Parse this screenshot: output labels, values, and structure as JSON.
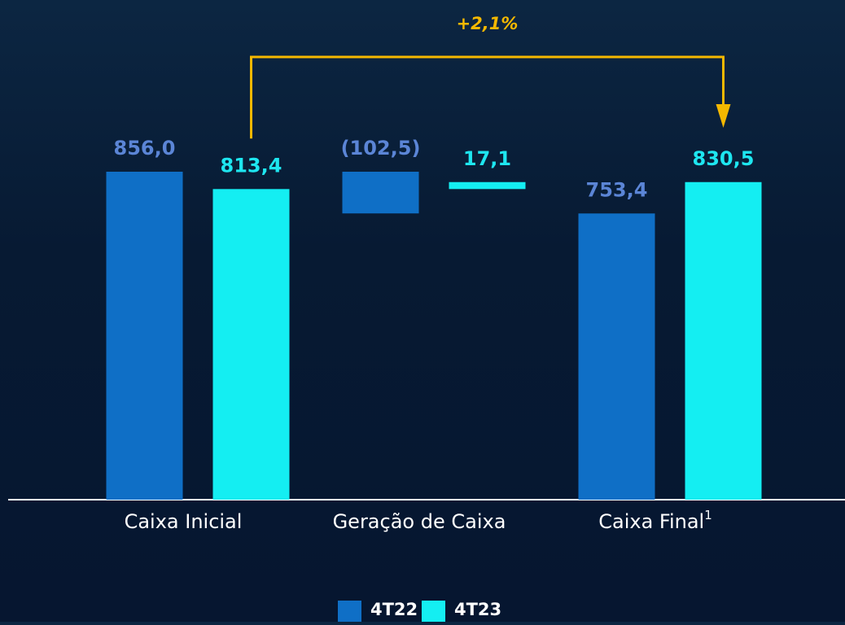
{
  "chart_data": {
    "type": "waterfall",
    "categories": [
      "Caixa Inicial",
      "Geração de Caixa",
      "Caixa Final"
    ],
    "category_superscripts": [
      null,
      null,
      "1"
    ],
    "is_total": [
      true,
      false,
      true
    ],
    "series": [
      {
        "name": "4T22",
        "color": "#0f6fc6",
        "label_color": "#5b85d6",
        "values": [
          856.0,
          -102.5,
          753.4
        ],
        "value_labels": [
          "856,0",
          "(102,5)",
          "753,4"
        ]
      },
      {
        "name": "4T23",
        "color": "#14eef2",
        "label_color": "#1ee6f0",
        "values": [
          813.4,
          17.1,
          830.5
        ],
        "value_labels": [
          "813,4",
          "17,1",
          "830,5"
        ]
      }
    ],
    "ylim": [
      50,
      900
    ],
    "annotation": "+2,1%",
    "annotation_color": "#f5b800",
    "legend": "bottom"
  }
}
